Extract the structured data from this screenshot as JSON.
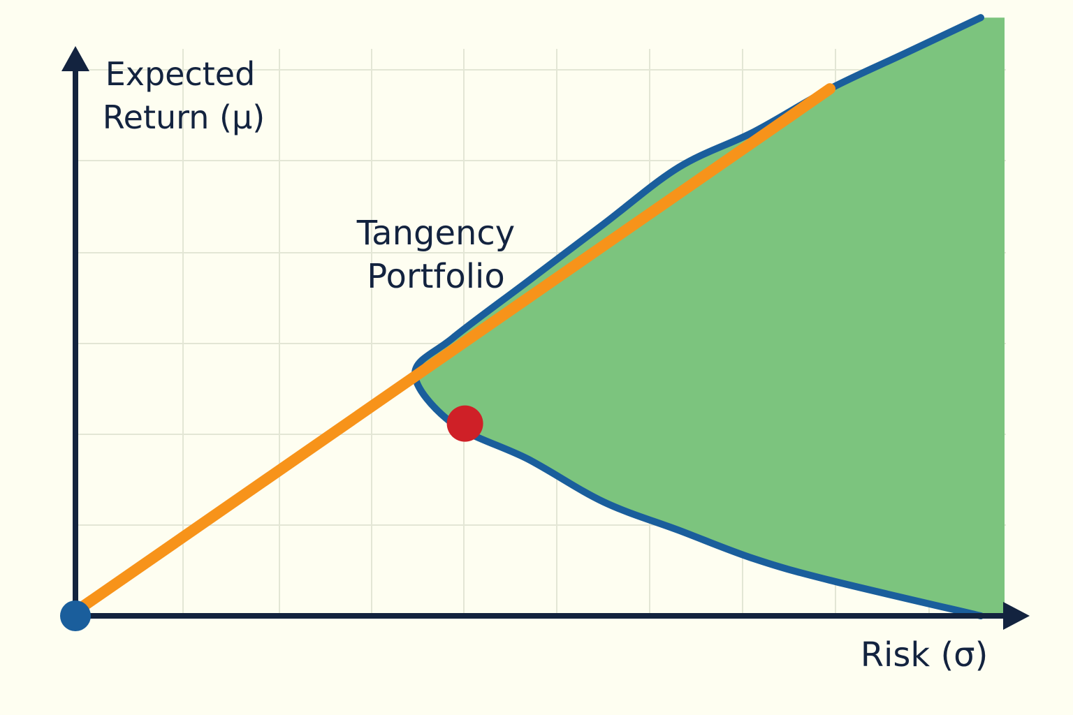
{
  "chart_data": {
    "type": "line",
    "title": "",
    "ylabel_line1": "Expected",
    "ylabel_line2": "Return (μ)",
    "xlabel": "Risk (σ)",
    "x_ticks_labeled": false,
    "y_ticks_labeled": false,
    "grid": true,
    "legend": "none",
    "series": [
      {
        "kind": "capital-market-line",
        "color": "#F7931A",
        "points": [
          [
            0,
            0
          ],
          [
            1,
            0.74
          ]
        ]
      },
      {
        "kind": "efficient-frontier",
        "color": "#1A5E9C",
        "fill_color": "#7CC47E",
        "points": [
          [
            0.45,
            0.34
          ],
          [
            0.5,
            0.39
          ],
          [
            0.6,
            0.47
          ],
          [
            0.7,
            0.55
          ],
          [
            0.8,
            0.63
          ],
          [
            0.9,
            0.68
          ],
          [
            1.0,
            0.74
          ],
          [
            1.1,
            0.79
          ],
          [
            1.2,
            0.84
          ],
          [
            0.45,
            0.34
          ],
          [
            0.5,
            0.27
          ],
          [
            0.6,
            0.22
          ],
          [
            0.7,
            0.16
          ],
          [
            0.8,
            0.12
          ],
          [
            0.9,
            0.08
          ],
          [
            1.0,
            0.05
          ],
          [
            1.2,
            0.0
          ]
        ]
      }
    ],
    "annotations": [
      {
        "kind": "point",
        "name": "origin",
        "color": "#1A5E9C",
        "x": 0,
        "y": 0
      },
      {
        "kind": "point",
        "name": "tangency",
        "color": "#CF2027",
        "x": 0.47,
        "y": 0.37,
        "label_line1": "Tangency",
        "label_line2": "Portfolio"
      }
    ],
    "colors": {
      "background": "#FEFEF1",
      "axis": "#13233F",
      "grid": "#E3E6D5"
    }
  }
}
